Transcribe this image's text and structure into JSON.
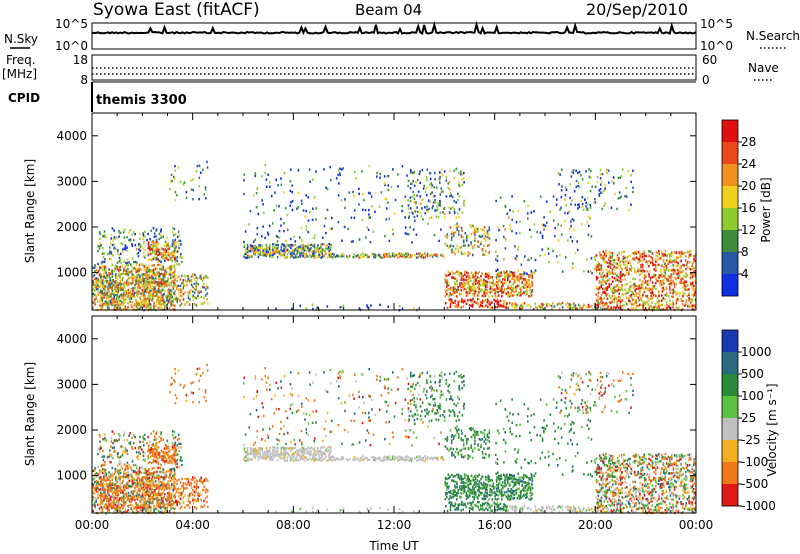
{
  "header": {
    "station": "Syowa East (fitACF)",
    "beam": "Beam 04",
    "date": "20/Sep/2010"
  },
  "status_panels": {
    "nsky_label": "N.Sky",
    "nsearch_label": "N.Search",
    "freq_label": "Freq.",
    "freq_unit": "[MHz]",
    "nave_label": "Nave",
    "cpid_label": "CPID",
    "cpid_value": "themis 3300",
    "noise_ticks_left": [
      "10^5",
      "10^0"
    ],
    "noise_ticks_right": [
      "10^5",
      "10^0"
    ],
    "freq_ticks": [
      "18",
      "8"
    ],
    "nave_ticks": [
      "60",
      "0"
    ]
  },
  "chart_data": [
    {
      "type": "heatmap",
      "title": "Power",
      "ylabel": "Slant Range [km]",
      "ylim": [
        180,
        4500
      ],
      "yticks": [
        "1000",
        "2000",
        "3000",
        "4000"
      ],
      "colorbar": {
        "label": "Power [dB]",
        "ticks": [
          "4",
          "8",
          "12",
          "16",
          "20",
          "24",
          "28"
        ],
        "colors": [
          "#1030e0",
          "#2858a8",
          "#3c8c3c",
          "#90cc30",
          "#f0d020",
          "#f09020",
          "#e84818",
          "#e01010"
        ]
      }
    },
    {
      "type": "heatmap",
      "title": "Velocity",
      "ylabel": "Slant Range [km]",
      "xlabel": "Time UT",
      "ylim": [
        180,
        4500
      ],
      "xlim": [
        0,
        24
      ],
      "xticks": [
        "00:00",
        "04:00",
        "08:00",
        "12:00",
        "16:00",
        "20:00",
        "00:00"
      ],
      "yticks": [
        "1000",
        "2000",
        "3000",
        "4000"
      ],
      "colorbar": {
        "label": "Velocity [m s⁻¹]",
        "ticks": [
          "1000",
          "500",
          "100",
          "25",
          "-25",
          "-100",
          "-500",
          "-1000"
        ],
        "colors": [
          "#1838b0",
          "#2a6a80",
          "#2a8a3a",
          "#5cc040",
          "#c0c0c0",
          "#f0b020",
          "#f07818",
          "#e01818"
        ]
      }
    }
  ]
}
